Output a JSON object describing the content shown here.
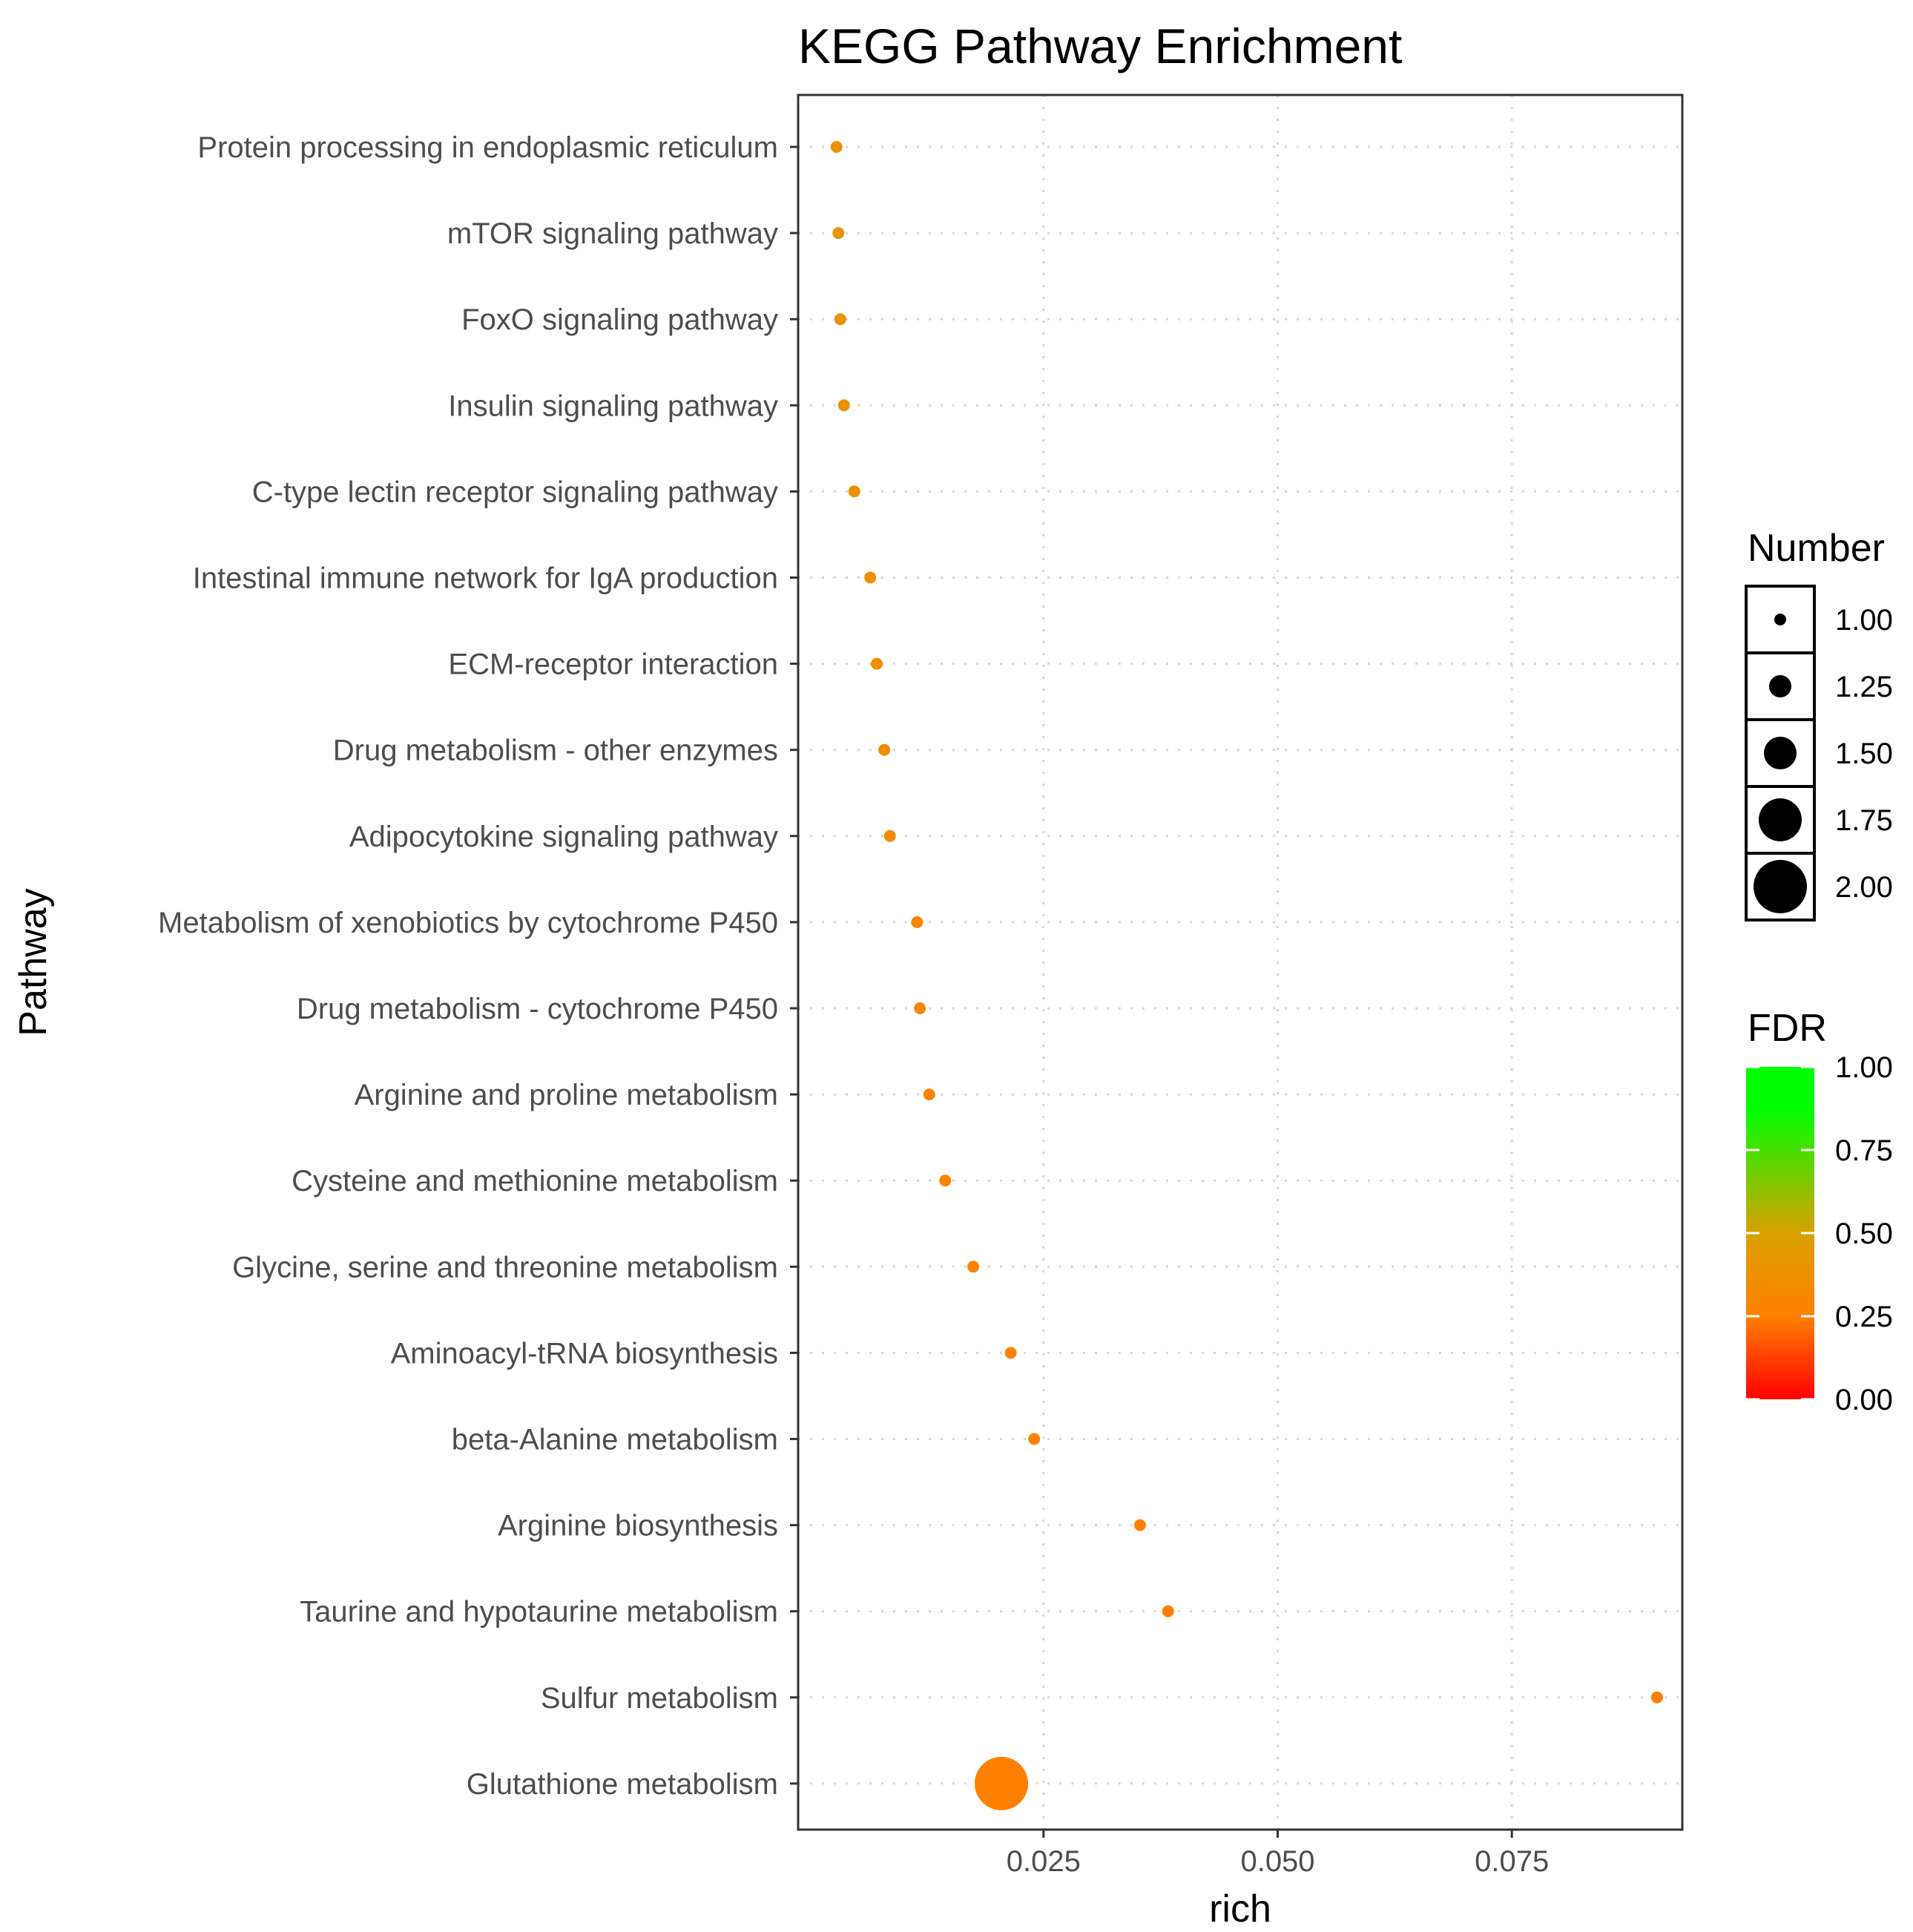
{
  "chart_data": {
    "type": "scatter",
    "title": "KEGG Pathway Enrichment",
    "xlabel": "rich",
    "ylabel": "Pathway",
    "xlim": [
      -0.0012,
      0.0932
    ],
    "x_ticks": [
      "0.025",
      "0.050",
      "0.075"
    ],
    "x_tick_values": [
      0.025,
      0.05,
      0.075
    ],
    "grid": true,
    "legend_position": "right",
    "points": [
      {
        "pathway": "Protein processing in endoplasmic reticulum",
        "rich": 0.0029,
        "number": 1,
        "fdr": 0.41
      },
      {
        "pathway": "mTOR signaling pathway",
        "rich": 0.0031,
        "number": 1,
        "fdr": 0.41
      },
      {
        "pathway": "FoxO signaling pathway",
        "rich": 0.0033,
        "number": 1,
        "fdr": 0.41
      },
      {
        "pathway": "Insulin signaling pathway",
        "rich": 0.0037,
        "number": 1,
        "fdr": 0.4
      },
      {
        "pathway": "C-type lectin receptor signaling pathway",
        "rich": 0.0048,
        "number": 1,
        "fdr": 0.39
      },
      {
        "pathway": "Intestinal immune network for IgA production",
        "rich": 0.0065,
        "number": 1,
        "fdr": 0.36
      },
      {
        "pathway": "ECM-receptor interaction",
        "rich": 0.0072,
        "number": 1,
        "fdr": 0.35
      },
      {
        "pathway": "Drug metabolism - other enzymes",
        "rich": 0.008,
        "number": 1,
        "fdr": 0.34
      },
      {
        "pathway": "Adipocytokine signaling pathway",
        "rich": 0.0086,
        "number": 1,
        "fdr": 0.33
      },
      {
        "pathway": "Metabolism of xenobiotics by cytochrome P450",
        "rich": 0.0115,
        "number": 1,
        "fdr": 0.3
      },
      {
        "pathway": "Drug metabolism - cytochrome P450",
        "rich": 0.0118,
        "number": 1,
        "fdr": 0.3
      },
      {
        "pathway": "Arginine and proline metabolism",
        "rich": 0.0128,
        "number": 1,
        "fdr": 0.29
      },
      {
        "pathway": "Cysteine and methionine metabolism",
        "rich": 0.0145,
        "number": 1,
        "fdr": 0.28
      },
      {
        "pathway": "Glycine, serine and threonine metabolism",
        "rich": 0.0175,
        "number": 1,
        "fdr": 0.27
      },
      {
        "pathway": "Aminoacyl-tRNA biosynthesis",
        "rich": 0.0215,
        "number": 1,
        "fdr": 0.26
      },
      {
        "pathway": "beta-Alanine metabolism",
        "rich": 0.024,
        "number": 1,
        "fdr": 0.26
      },
      {
        "pathway": "Arginine biosynthesis",
        "rich": 0.0353,
        "number": 1,
        "fdr": 0.25
      },
      {
        "pathway": "Taurine and hypotaurine metabolism",
        "rich": 0.0383,
        "number": 1,
        "fdr": 0.25
      },
      {
        "pathway": "Sulfur metabolism",
        "rich": 0.0905,
        "number": 1,
        "fdr": 0.25
      },
      {
        "pathway": "Glutathione metabolism",
        "rich": 0.0205,
        "number": 2,
        "fdr": 0.25
      }
    ],
    "legends": {
      "size": {
        "title": "Number",
        "labels": [
          "1.00",
          "1.25",
          "1.50",
          "1.75",
          "2.00"
        ],
        "values": [
          1.0,
          1.25,
          1.5,
          1.75,
          2.0
        ]
      },
      "color": {
        "title": "FDR",
        "labels": [
          "1.00",
          "0.75",
          "0.50",
          "0.25",
          "0.00"
        ],
        "values": [
          1.0,
          0.75,
          0.5,
          0.25,
          0.0
        ],
        "low_color": "#ff0000",
        "high_color": "#00ff00",
        "colors": [
          "#ff0000",
          "#ff8000",
          "#d9a000",
          "#00ff00"
        ]
      }
    }
  }
}
